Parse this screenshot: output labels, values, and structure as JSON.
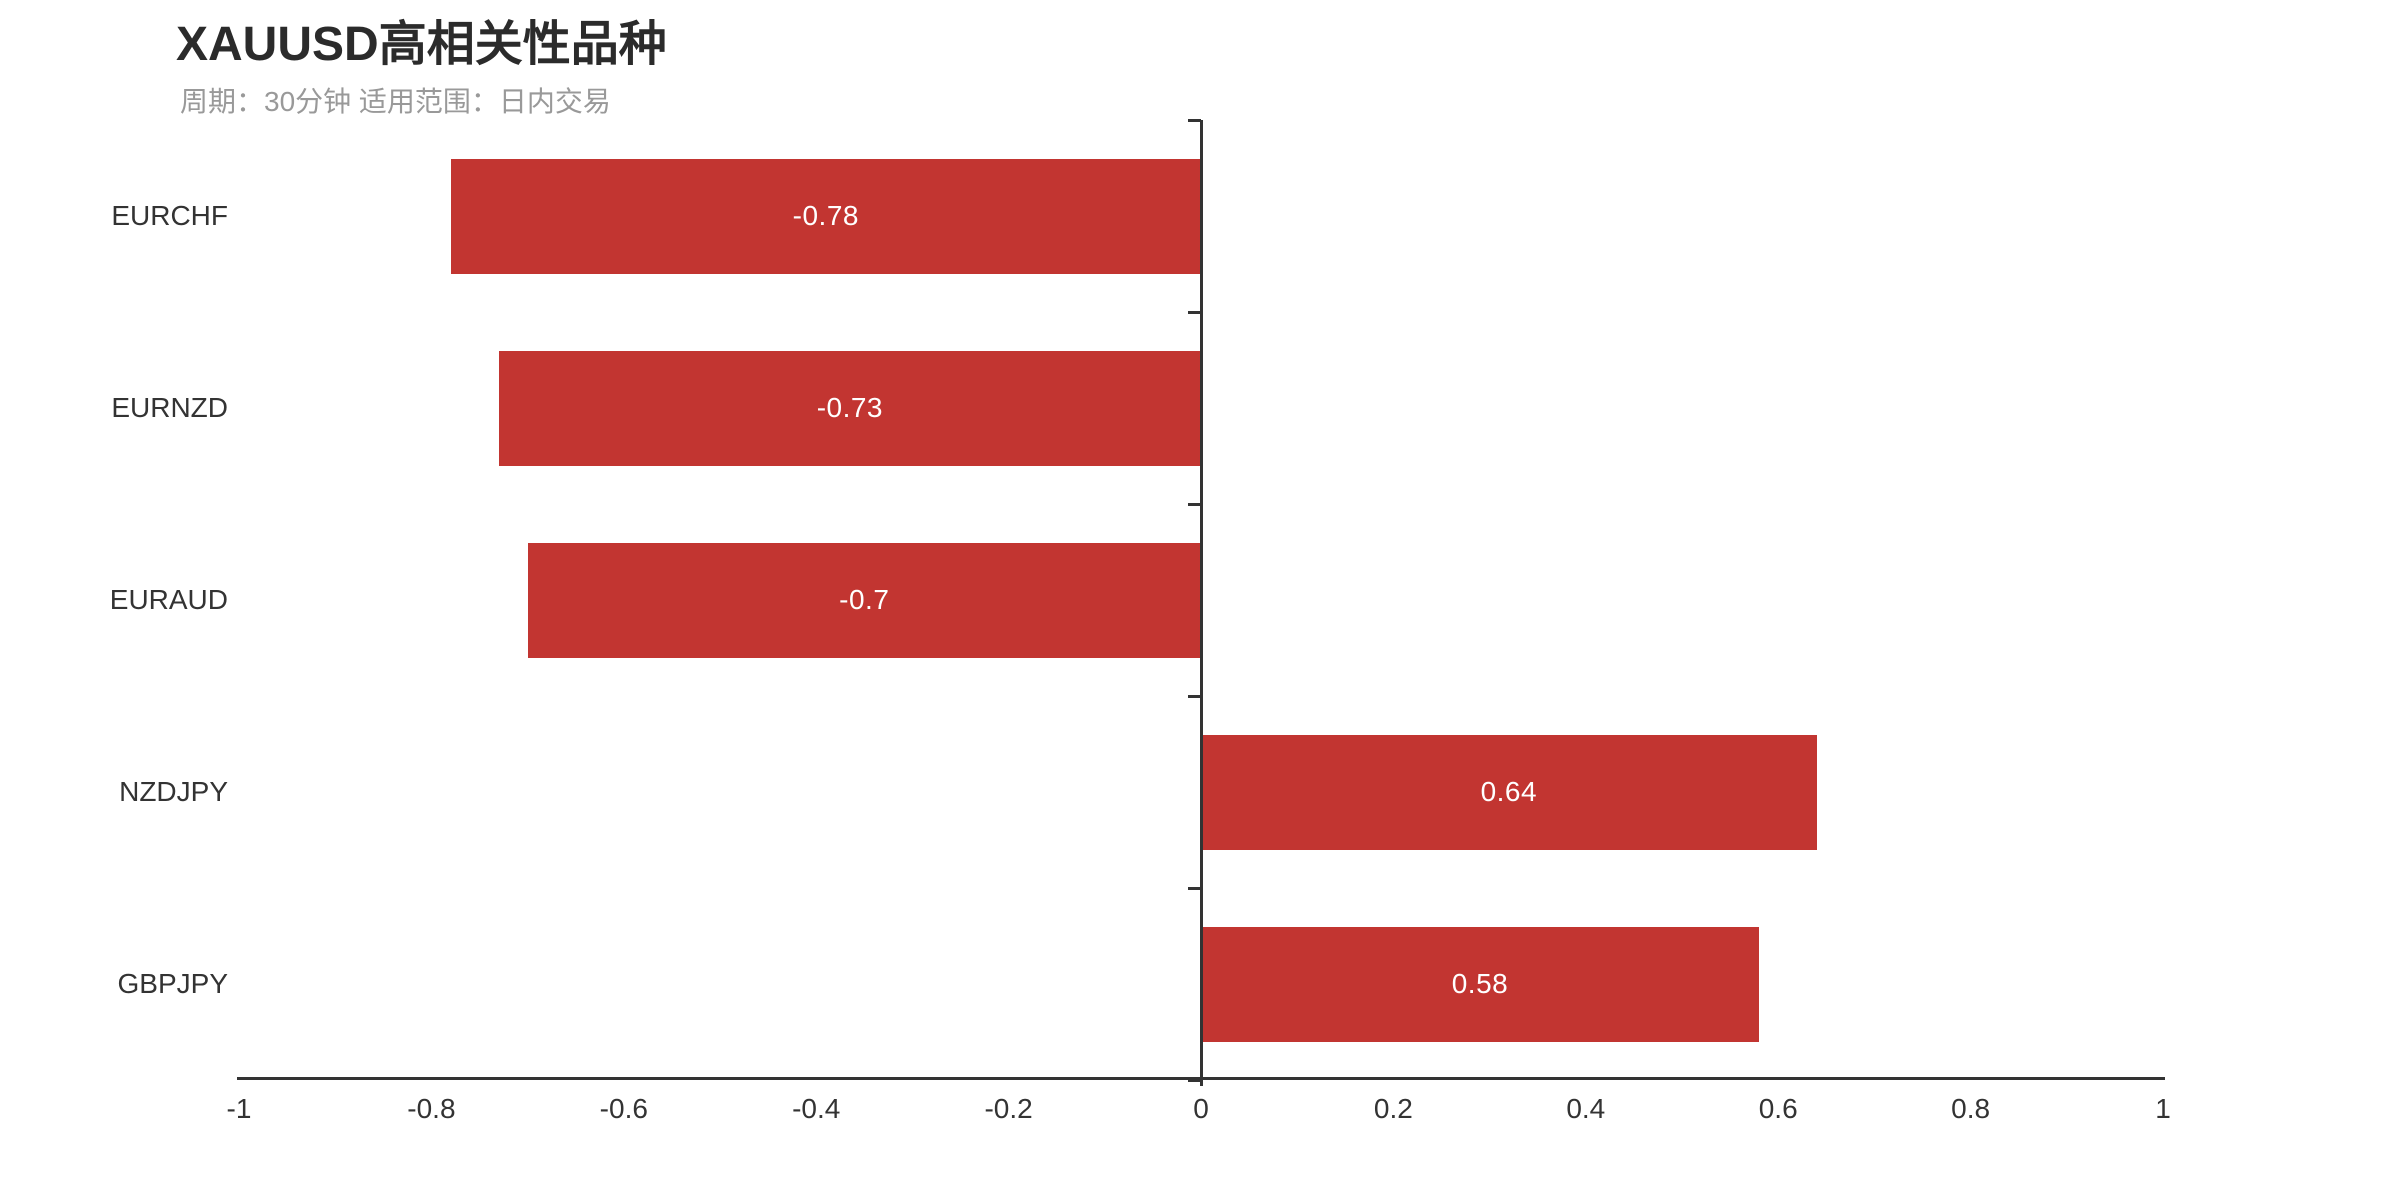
{
  "chart_data": {
    "type": "bar",
    "orientation": "horizontal",
    "title": "XAUUSD高相关性品种",
    "subtitle": "周期：30分钟 适用范围：日内交易",
    "categories": [
      "EURCHF",
      "EURNZD",
      "EURAUD",
      "NZDJPY",
      "GBPJPY"
    ],
    "values": [
      -0.78,
      -0.73,
      -0.7,
      0.64,
      0.58
    ],
    "value_labels": [
      "-0.78",
      "-0.73",
      "-0.7",
      "0.64",
      "0.58"
    ],
    "xlabel": "",
    "ylabel": "",
    "xlim": [
      -1,
      1
    ],
    "x_tick_values": [
      -1,
      -0.8,
      -0.6,
      -0.4,
      -0.2,
      0,
      0.2,
      0.4,
      0.6,
      0.8,
      1
    ],
    "x_tick_labels": [
      "-1",
      "-0.8",
      "-0.6",
      "-0.4",
      "-0.2",
      "0",
      "0.2",
      "0.4",
      "0.6",
      "0.8",
      "1"
    ],
    "grid": false,
    "legend_position": "none",
    "colors": {
      "bar": "#c23531",
      "axis": "#333333",
      "value_label": "#ffffff",
      "title": "#2b2b2b",
      "subtitle": "#999999",
      "tick_label": "#333333",
      "background": "#ffffff"
    }
  }
}
